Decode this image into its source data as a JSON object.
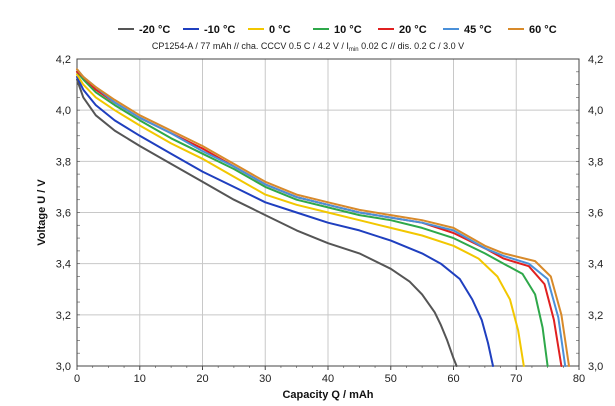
{
  "chart_data": {
    "type": "line",
    "subtitle_parts": [
      "CP1254-A / 77 mAh // cha. CCCV 0.5 C / 4.2 V / I",
      "min",
      " 0.02 C // dis. 0.2 C / 3.0 V"
    ],
    "xlabel": "Capacity Q / mAh",
    "ylabel": "Voltage U / V",
    "xlim": [
      0,
      80
    ],
    "ylim": [
      3.0,
      4.2
    ],
    "x_ticks": [
      0,
      10,
      20,
      30,
      40,
      50,
      60,
      70,
      80
    ],
    "x_tick_labels": [
      "0",
      "10",
      "20",
      "30",
      "40",
      "50",
      "60",
      "70",
      "80"
    ],
    "y_ticks": [
      3.0,
      3.2,
      3.4,
      3.6,
      3.8,
      4.0,
      4.2
    ],
    "y_tick_labels": [
      "3,0",
      "3,2",
      "3,4",
      "3,6",
      "3,8",
      "4,0",
      "4,2"
    ],
    "grid": true,
    "legend_position": "top",
    "series": [
      {
        "name": "-20 °C",
        "color": "#555555",
        "x": [
          0,
          1,
          3,
          6,
          10,
          15,
          20,
          25,
          30,
          35,
          40,
          45,
          50,
          53,
          55,
          57,
          58,
          59,
          60,
          60.5
        ],
        "y": [
          4.12,
          4.05,
          3.98,
          3.92,
          3.86,
          3.79,
          3.72,
          3.65,
          3.59,
          3.53,
          3.48,
          3.44,
          3.38,
          3.33,
          3.28,
          3.21,
          3.16,
          3.1,
          3.03,
          3.0
        ]
      },
      {
        "name": "-10 °C",
        "color": "#1f3fbf",
        "x": [
          0,
          1,
          3,
          6,
          10,
          15,
          20,
          25,
          30,
          35,
          40,
          45,
          50,
          55,
          58,
          61,
          63,
          64.5,
          65.5,
          66.3
        ],
        "y": [
          4.13,
          4.08,
          4.02,
          3.96,
          3.9,
          3.83,
          3.76,
          3.7,
          3.64,
          3.6,
          3.56,
          3.53,
          3.49,
          3.44,
          3.4,
          3.34,
          3.26,
          3.18,
          3.09,
          3.0
        ]
      },
      {
        "name": "0 °C",
        "color": "#f2c700",
        "x": [
          0,
          1,
          3,
          6,
          10,
          15,
          20,
          25,
          30,
          35,
          40,
          45,
          50,
          55,
          60,
          64,
          67,
          69,
          70.3,
          71.2
        ],
        "y": [
          4.14,
          4.1,
          4.05,
          4.0,
          3.94,
          3.87,
          3.81,
          3.74,
          3.67,
          3.63,
          3.6,
          3.57,
          3.54,
          3.51,
          3.47,
          3.42,
          3.35,
          3.26,
          3.14,
          3.0
        ]
      },
      {
        "name": "10 °C",
        "color": "#2ea84a",
        "x": [
          0,
          1,
          3,
          6,
          10,
          15,
          20,
          25,
          30,
          35,
          40,
          45,
          50,
          55,
          60,
          65,
          68,
          71,
          73,
          74.2,
          75
        ],
        "y": [
          4.15,
          4.12,
          4.07,
          4.02,
          3.96,
          3.89,
          3.83,
          3.77,
          3.7,
          3.65,
          3.62,
          3.59,
          3.57,
          3.54,
          3.5,
          3.44,
          3.4,
          3.36,
          3.28,
          3.15,
          3.0
        ]
      },
      {
        "name": "20 °C",
        "color": "#e02020",
        "x": [
          0,
          1,
          3,
          6,
          10,
          15,
          20,
          25,
          30,
          35,
          40,
          45,
          50,
          55,
          60,
          65,
          68,
          72,
          74.5,
          76,
          77.2
        ],
        "y": [
          4.15,
          4.13,
          4.08,
          4.03,
          3.97,
          3.91,
          3.85,
          3.78,
          3.71,
          3.66,
          3.63,
          3.6,
          3.58,
          3.56,
          3.52,
          3.46,
          3.42,
          3.39,
          3.32,
          3.18,
          3.0
        ]
      },
      {
        "name": "45 °C",
        "color": "#4a90d9",
        "x": [
          0,
          1,
          3,
          6,
          10,
          15,
          20,
          25,
          30,
          35,
          40,
          45,
          50,
          55,
          60,
          65,
          68,
          72,
          75,
          76.7,
          77.8
        ],
        "y": [
          4.16,
          4.13,
          4.09,
          4.03,
          3.97,
          3.91,
          3.84,
          3.78,
          3.71,
          3.66,
          3.63,
          3.6,
          3.58,
          3.56,
          3.53,
          3.46,
          3.43,
          3.4,
          3.34,
          3.19,
          3.0
        ]
      },
      {
        "name": "60 °C",
        "color": "#d88a2a",
        "x": [
          0,
          1,
          3,
          6,
          10,
          15,
          20,
          25,
          30,
          35,
          40,
          45,
          50,
          55,
          60,
          65,
          68,
          73,
          75.5,
          77.2,
          78.4
        ],
        "y": [
          4.16,
          4.13,
          4.09,
          4.04,
          3.98,
          3.92,
          3.86,
          3.79,
          3.72,
          3.67,
          3.64,
          3.61,
          3.59,
          3.57,
          3.54,
          3.47,
          3.44,
          3.41,
          3.35,
          3.2,
          3.0
        ]
      }
    ]
  }
}
